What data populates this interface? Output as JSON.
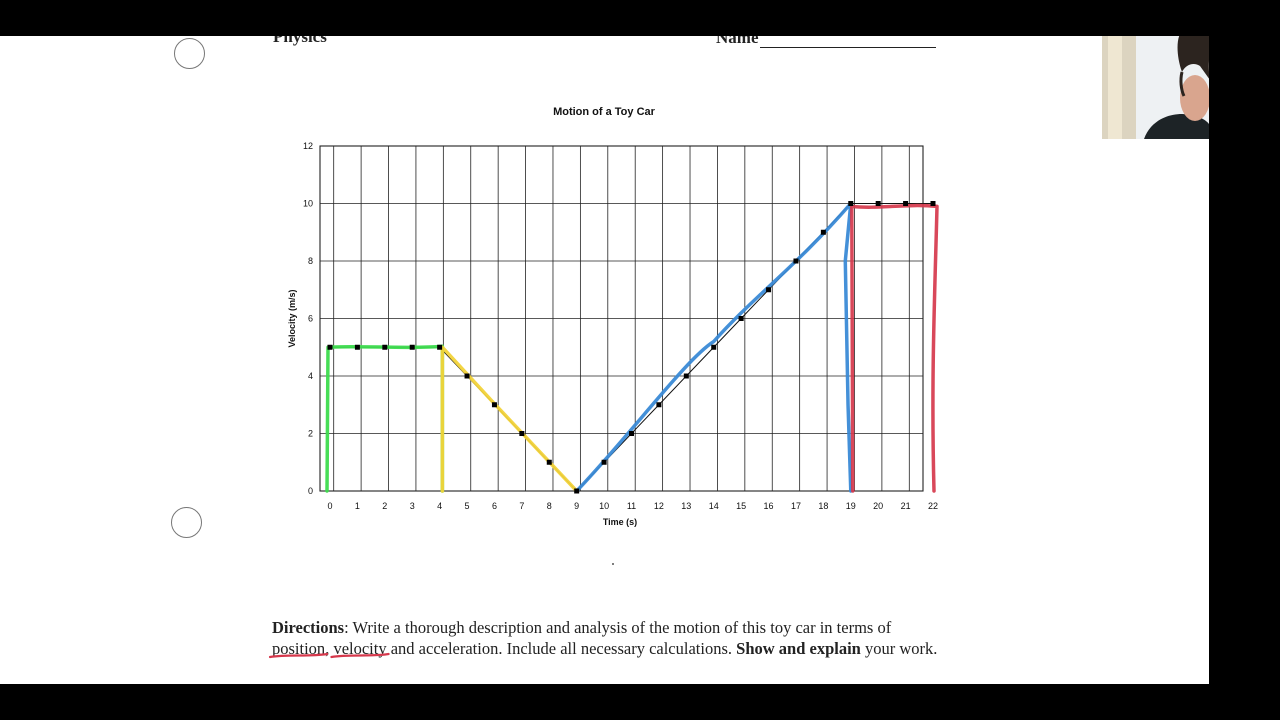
{
  "worksheet": {
    "subject": "Physics",
    "name_label": "Name",
    "directions": {
      "label": "Directions",
      "p1": ": Write a thorough description and analysis of the motion of this toy car in terms of ",
      "w_position": "position",
      "p2": ", ",
      "w_velocity": "velocity",
      "p3": " and acceleration. Include all necessary calculations. ",
      "bold_end": "Show and explain",
      "p4": " your work."
    }
  },
  "colors": {
    "grid": "#222222",
    "green": "#3ddc4e",
    "yellow": "#f2d33a",
    "blue": "#3a8ad6",
    "red": "#d6384c",
    "underline": "#d6384c"
  },
  "chart_data": {
    "type": "line",
    "title": "Motion of a Toy Car",
    "xlabel": "Time (s)",
    "ylabel": "Velocity (m/s)",
    "xlim": [
      0,
      22
    ],
    "ylim": [
      0,
      12
    ],
    "xticks": [
      0,
      1,
      2,
      3,
      4,
      5,
      6,
      7,
      8,
      9,
      10,
      11,
      12,
      13,
      14,
      15,
      16,
      17,
      18,
      19,
      20,
      21,
      22
    ],
    "yticks": [
      0,
      2,
      4,
      6,
      8,
      10,
      12
    ],
    "grid": true,
    "series": [
      {
        "x": [
          0,
          1,
          2,
          3,
          4,
          5,
          6,
          7,
          8,
          9,
          10,
          11,
          12,
          13,
          14,
          15,
          16,
          17,
          18,
          19,
          20,
          21,
          22
        ],
        "y": [
          5,
          5,
          5,
          5,
          5,
          4,
          3,
          2,
          1,
          0,
          1,
          2,
          3,
          4,
          5,
          6,
          7,
          8,
          9,
          10,
          10,
          10,
          10
        ]
      }
    ],
    "annotations": [
      {
        "color": "green",
        "shape": "box",
        "x": [
          0,
          4.1
        ],
        "y": [
          0,
          5
        ]
      },
      {
        "color": "yellow",
        "shape": "triangle",
        "points": [
          [
            4.1,
            0
          ],
          [
            4.1,
            5
          ],
          [
            9,
            0
          ]
        ]
      },
      {
        "color": "blue",
        "shape": "triangle",
        "points": [
          [
            9,
            0
          ],
          [
            19,
            10
          ],
          [
            19,
            0
          ]
        ]
      },
      {
        "color": "red",
        "shape": "box",
        "x": [
          19,
          22
        ],
        "y": [
          0,
          10
        ]
      }
    ]
  }
}
